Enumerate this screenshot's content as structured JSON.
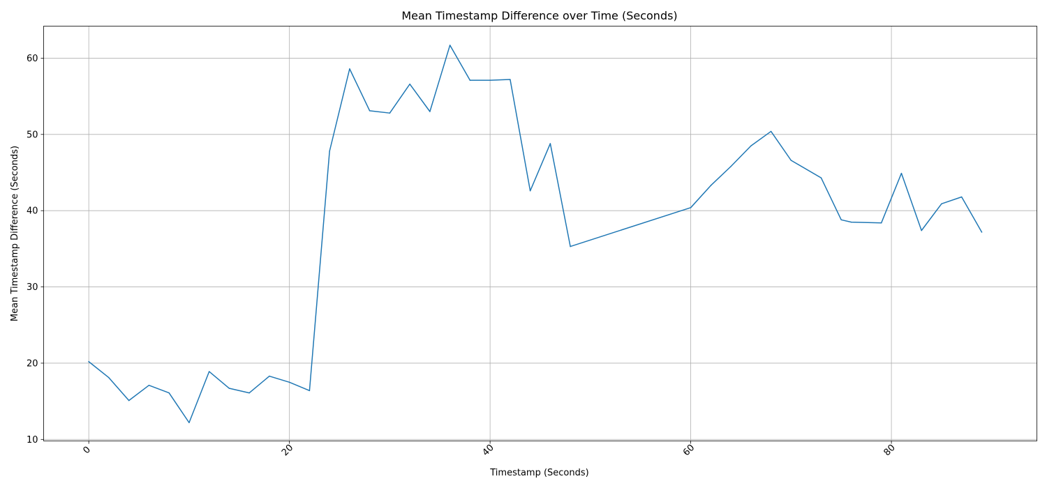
{
  "chart_data": {
    "type": "line",
    "title": "Mean Timestamp Difference over Time (Seconds)",
    "xlabel": "Timestamp (Seconds)",
    "ylabel": "Mean Timestamp Difference (Seconds)",
    "xlim": [
      -4.5,
      94.5
    ],
    "ylim": [
      9.8,
      64.2
    ],
    "xticks": [
      0,
      20,
      40,
      60,
      80
    ],
    "xtick_labels": [
      "0",
      "20",
      "40",
      "60",
      "80"
    ],
    "xtick_rotation": -45,
    "yticks": [
      10,
      20,
      30,
      40,
      50,
      60
    ],
    "ytick_labels": [
      "10",
      "20",
      "30",
      "40",
      "50",
      "60"
    ],
    "grid": true,
    "series": [
      {
        "color": "#1f77b4",
        "x": [
          0,
          2,
          4,
          6,
          8,
          10,
          12,
          14,
          16,
          18,
          20,
          22,
          24,
          26,
          28,
          30,
          32,
          34,
          36,
          38,
          40,
          42,
          44,
          46,
          48,
          60,
          62,
          64,
          66,
          68,
          70,
          73,
          75,
          76,
          79,
          81,
          83,
          85,
          87,
          89
        ],
        "y": [
          20.2,
          18.1,
          15.1,
          17.1,
          16.1,
          12.2,
          18.9,
          16.7,
          16.1,
          18.3,
          17.5,
          16.4,
          47.8,
          58.6,
          53.1,
          52.8,
          56.6,
          53.0,
          61.7,
          57.1,
          57.1,
          57.2,
          42.6,
          48.8,
          35.3,
          40.4,
          43.3,
          45.8,
          48.5,
          50.4,
          46.6,
          44.3,
          38.8,
          38.5,
          38.4,
          44.9,
          37.4,
          40.9,
          41.8,
          37.2
        ]
      }
    ]
  }
}
